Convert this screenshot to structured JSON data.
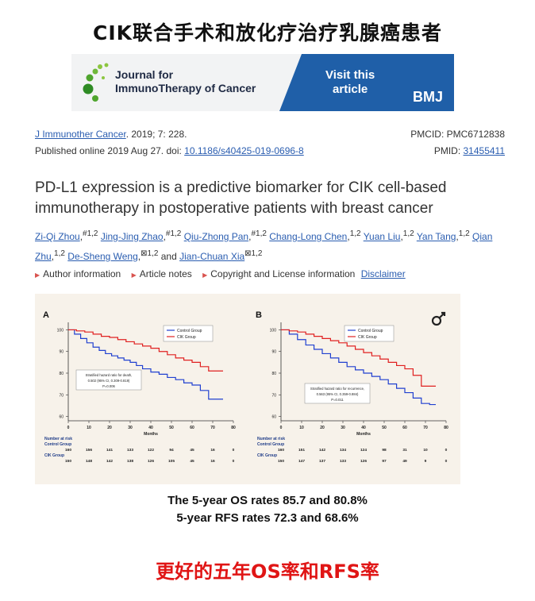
{
  "header": {
    "title": "CIK联合手术和放化疗治疗乳腺癌患者"
  },
  "banner": {
    "journal_line1": "Journal for",
    "journal_line2": "ImmunoTherapy of Cancer",
    "visit_line1": "Visit this",
    "visit_line2": "article",
    "publisher": "BMJ",
    "accent_color": "#1f5fa8"
  },
  "citation": {
    "journal_link": "J Immunother Cancer",
    "journal_rest": ". 2019; 7: 228.",
    "pmcid": "PMCID: PMC6712838",
    "published_prefix": "Published online 2019 Aug 27. doi: ",
    "doi": "10.1186/s40425-019-0696-8",
    "pmid_label": "PMID: ",
    "pmid": "31455411"
  },
  "article": {
    "title": "PD-L1 expression is a predictive biomarker for CIK cell-based immunotherapy in postoperative patients with breast cancer",
    "authors": [
      {
        "name": "Zi-Qi Zhou",
        "sup": "#1,2"
      },
      {
        "name": "Jing-Jing Zhao",
        "sup": "#1,2"
      },
      {
        "name": "Qiu-Zhong Pan",
        "sup": "#1,2"
      },
      {
        "name": "Chang-Long Chen",
        "sup": "1,2"
      },
      {
        "name": "Yuan Liu",
        "sup": "1,2"
      },
      {
        "name": "Yan Tang",
        "sup": "1,2"
      },
      {
        "name": "Qian Zhu",
        "sup": "1,2"
      },
      {
        "name": "De-Sheng Weng",
        "sup": "⊠1,2"
      },
      {
        "name": "Jian-Chuan Xia",
        "sup": "⊠1,2"
      }
    ],
    "authors_and": "and",
    "info_links": [
      "Author information",
      "Article notes",
      "Copyright and License information"
    ],
    "disclaimer": "Disclaimer"
  },
  "chart_data": [
    {
      "type": "line",
      "panel_label": "A",
      "xlabel": "Months",
      "x_ticks": [
        0,
        10,
        20,
        30,
        40,
        50,
        60,
        70,
        80
      ],
      "y_ticks": [
        60,
        70,
        80,
        90,
        100
      ],
      "ylim": [
        58,
        102
      ],
      "xlim": [
        0,
        80
      ],
      "series": [
        {
          "name": "Control Group",
          "color": "#2040d0",
          "x": [
            0,
            3,
            6,
            9,
            12,
            15,
            18,
            21,
            24,
            27,
            30,
            33,
            36,
            40,
            44,
            48,
            52,
            56,
            60,
            64,
            68,
            72,
            75
          ],
          "y": [
            100,
            98,
            96,
            94,
            92,
            90.5,
            89,
            88,
            87,
            86,
            85,
            83.5,
            82,
            80.5,
            79.5,
            78,
            77,
            75.5,
            74.5,
            72,
            68,
            68,
            68
          ]
        },
        {
          "name": "CIK Group",
          "color": "#e02020",
          "x": [
            0,
            4,
            8,
            12,
            16,
            20,
            24,
            28,
            32,
            36,
            40,
            44,
            48,
            52,
            56,
            60,
            64,
            68,
            72,
            75
          ],
          "y": [
            100,
            99.5,
            99,
            98,
            97,
            96.5,
            95.5,
            94.5,
            93.5,
            92.5,
            91.5,
            90,
            88.5,
            87,
            86,
            85,
            83,
            81,
            81,
            81
          ]
        }
      ],
      "annotation": [
        "Stratified hazard ratio for death,",
        "0.502 (95% CI, 0.309-0.819)",
        "P=0.006"
      ],
      "risk_table": {
        "title": "Number at risk",
        "rows": [
          {
            "label": "Control Group",
            "values": [
              "160",
              "156",
              "141",
              "133",
              "122",
              "94",
              "45",
              "16",
              "0"
            ]
          },
          {
            "label": "CIK Group",
            "values": [
              "150",
              "148",
              "142",
              "138",
              "126",
              "105",
              "45",
              "16",
              "0"
            ]
          }
        ]
      }
    },
    {
      "type": "line",
      "panel_label": "B",
      "xlabel": "Months",
      "x_ticks": [
        0,
        10,
        20,
        30,
        40,
        50,
        60,
        70,
        80
      ],
      "y_ticks": [
        60,
        70,
        80,
        90,
        100
      ],
      "ylim": [
        58,
        102
      ],
      "xlim": [
        0,
        80
      ],
      "series": [
        {
          "name": "Control Group",
          "color": "#2040d0",
          "x": [
            0,
            4,
            8,
            12,
            16,
            20,
            24,
            28,
            32,
            36,
            40,
            44,
            48,
            52,
            56,
            60,
            64,
            68,
            72,
            75
          ],
          "y": [
            100,
            98,
            95.5,
            93,
            91,
            89,
            87,
            85,
            83,
            81.5,
            80,
            78.5,
            77,
            75,
            73,
            71,
            68.5,
            66,
            65.5,
            65.5
          ]
        },
        {
          "name": "CIK Group",
          "color": "#e02020",
          "x": [
            0,
            4,
            8,
            12,
            16,
            20,
            24,
            28,
            32,
            36,
            40,
            44,
            48,
            52,
            56,
            60,
            64,
            68,
            72,
            75
          ],
          "y": [
            100,
            99.5,
            99,
            98,
            97,
            96,
            95,
            94,
            92.5,
            91,
            89.5,
            88,
            86.5,
            85,
            83.5,
            82,
            79,
            74,
            74,
            74
          ]
        }
      ],
      "annotation": [
        "Stratified hazard ratio for recurrence,",
        "0.563 (95% CI, 0.359-0.884)",
        "P=0.011"
      ],
      "risk_table": {
        "title": "Number at risk",
        "rows": [
          {
            "label": "Control Group",
            "values": [
              "160",
              "151",
              "142",
              "134",
              "124",
              "98",
              "31",
              "10",
              "0"
            ]
          },
          {
            "label": "CIK Group",
            "values": [
              "150",
              "147",
              "137",
              "133",
              "126",
              "97",
              "49",
              "9",
              "0"
            ]
          }
        ]
      }
    }
  ],
  "captions": {
    "line1": "The 5-year OS rates 85.7 and 80.8%",
    "line2": "5-year RFS rates 72.3 and 68.6%"
  },
  "footer": {
    "text": "更好的五年OS率和RFS率",
    "color": "#e01515"
  }
}
